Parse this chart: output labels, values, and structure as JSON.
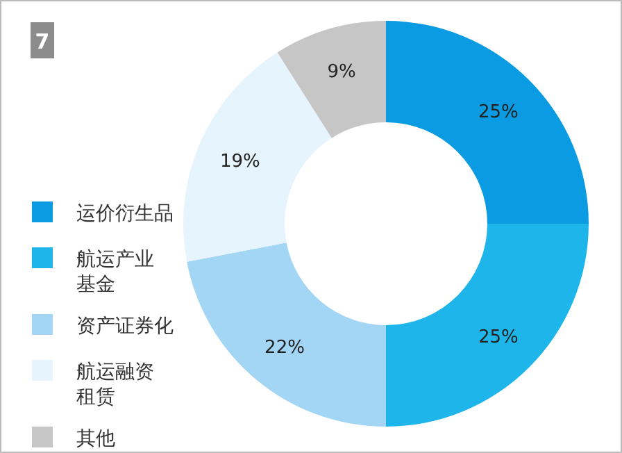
{
  "chart_data": {
    "type": "donut",
    "title": "7",
    "categories": [
      "运价衍生品",
      "航运产业基金",
      "资产证券化",
      "航运融资租赁",
      "其他"
    ],
    "values": [
      25,
      25,
      22,
      19,
      9
    ],
    "value_labels": [
      "25%",
      "25%",
      "22%",
      "19%",
      "9%"
    ],
    "colors": [
      "#0a9be3",
      "#1db5ea",
      "#a3d6f4",
      "#e6f4fd",
      "#c6c6c6"
    ],
    "legend": "left"
  }
}
